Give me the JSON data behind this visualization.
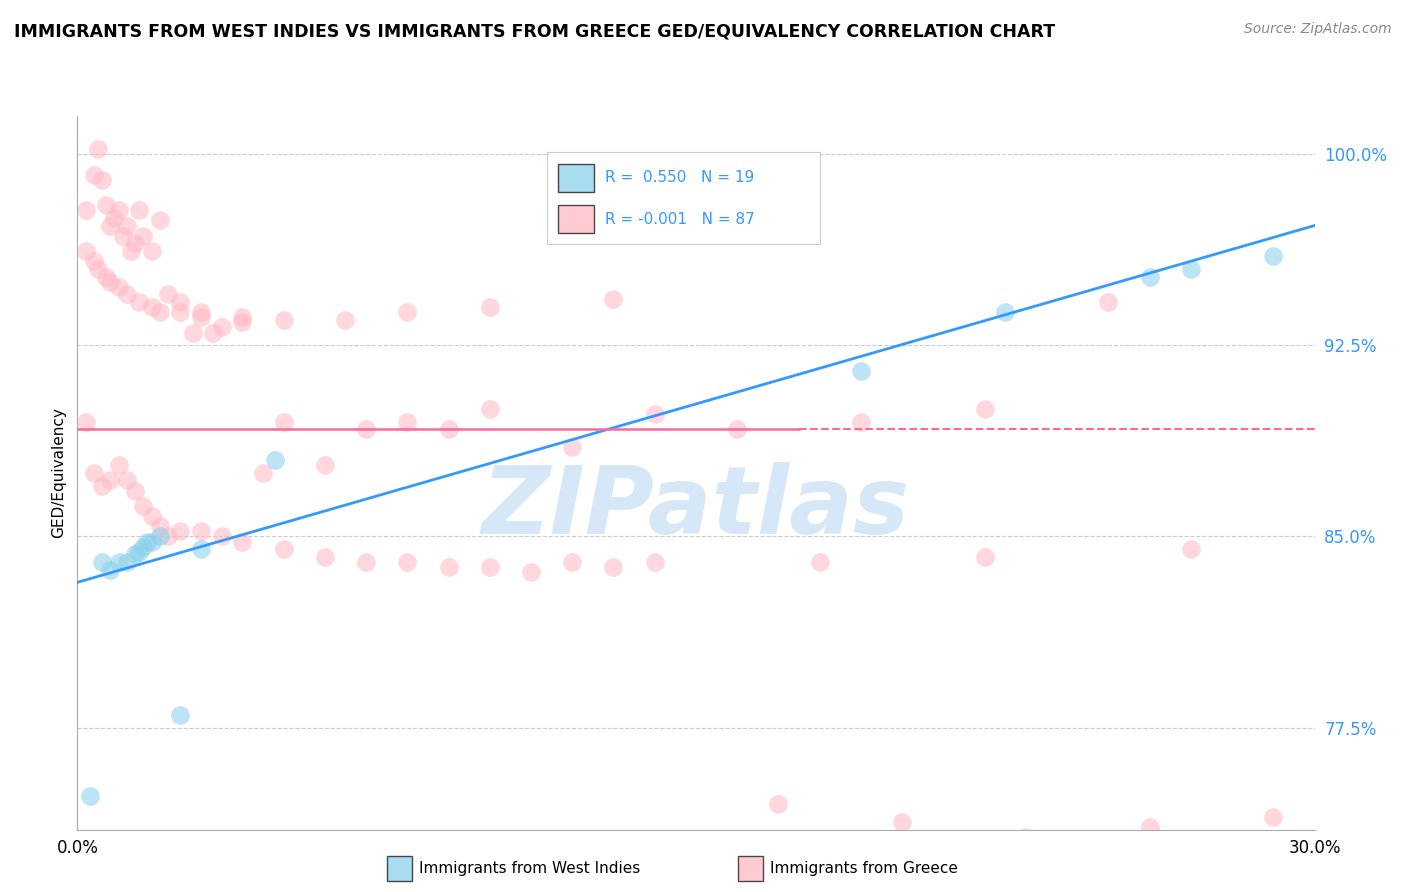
{
  "title": "IMMIGRANTS FROM WEST INDIES VS IMMIGRANTS FROM GREECE GED/EQUIVALENCY CORRELATION CHART",
  "source": "Source: ZipAtlas.com",
  "ylabel": "GED/Equivalency",
  "legend_label1": "Immigrants from West Indies",
  "legend_label2": "Immigrants from Greece",
  "r1": 0.55,
  "n1": 19,
  "r2": -0.001,
  "n2": 87,
  "xlim": [
    0.0,
    0.3
  ],
  "ylim": [
    0.735,
    1.015
  ],
  "yticks": [
    0.775,
    0.85,
    0.925,
    1.0
  ],
  "ytick_labels": [
    "77.5%",
    "85.0%",
    "92.5%",
    "100.0%"
  ],
  "xticks": [
    0.0,
    0.3
  ],
  "xtick_labels": [
    "0.0%",
    "30.0%"
  ],
  "color_blue": "#87CEEB",
  "color_pink": "#FFB6C1",
  "trend_blue": "#3399FF",
  "trend_pink": "#FF6699",
  "background_color": "#ffffff",
  "watermark": "ZIPatlas",
  "watermark_color": "#d6e8f7",
  "blue_line_y0": 0.832,
  "blue_line_y1": 0.972,
  "pink_line_y": 0.892,
  "blue_scatter_x": [
    0.003,
    0.006,
    0.008,
    0.01,
    0.012,
    0.014,
    0.015,
    0.016,
    0.017,
    0.018,
    0.02,
    0.025,
    0.03,
    0.048,
    0.19,
    0.225,
    0.26,
    0.27,
    0.29
  ],
  "blue_scatter_y": [
    0.748,
    0.84,
    0.837,
    0.84,
    0.84,
    0.843,
    0.844,
    0.846,
    0.848,
    0.848,
    0.85,
    0.78,
    0.845,
    0.88,
    0.915,
    0.938,
    0.952,
    0.955,
    0.96
  ],
  "pink_scatter_x": [
    0.002,
    0.004,
    0.005,
    0.006,
    0.007,
    0.008,
    0.009,
    0.01,
    0.011,
    0.012,
    0.013,
    0.014,
    0.015,
    0.016,
    0.018,
    0.02,
    0.022,
    0.025,
    0.028,
    0.03,
    0.033,
    0.035,
    0.04,
    0.045,
    0.05,
    0.06,
    0.07,
    0.08,
    0.09,
    0.1,
    0.12,
    0.14,
    0.16,
    0.19,
    0.22,
    0.25,
    0.002,
    0.004,
    0.006,
    0.008,
    0.01,
    0.012,
    0.014,
    0.016,
    0.018,
    0.02,
    0.022,
    0.025,
    0.03,
    0.035,
    0.04,
    0.05,
    0.06,
    0.07,
    0.08,
    0.09,
    0.1,
    0.11,
    0.12,
    0.14,
    0.002,
    0.004,
    0.005,
    0.007,
    0.008,
    0.01,
    0.012,
    0.015,
    0.018,
    0.02,
    0.025,
    0.03,
    0.04,
    0.05,
    0.065,
    0.08,
    0.1,
    0.13,
    0.17,
    0.2,
    0.23,
    0.26,
    0.13,
    0.18,
    0.22,
    0.27,
    0.29
  ],
  "pink_scatter_y": [
    0.978,
    0.992,
    1.002,
    0.99,
    0.98,
    0.972,
    0.975,
    0.978,
    0.968,
    0.972,
    0.962,
    0.965,
    0.978,
    0.968,
    0.962,
    0.974,
    0.945,
    0.942,
    0.93,
    0.938,
    0.93,
    0.932,
    0.934,
    0.875,
    0.895,
    0.878,
    0.892,
    0.895,
    0.892,
    0.9,
    0.885,
    0.898,
    0.892,
    0.895,
    0.9,
    0.942,
    0.895,
    0.875,
    0.87,
    0.872,
    0.878,
    0.872,
    0.868,
    0.862,
    0.858,
    0.854,
    0.85,
    0.852,
    0.852,
    0.85,
    0.848,
    0.845,
    0.842,
    0.84,
    0.84,
    0.838,
    0.838,
    0.836,
    0.84,
    0.84,
    0.962,
    0.958,
    0.955,
    0.952,
    0.95,
    0.948,
    0.945,
    0.942,
    0.94,
    0.938,
    0.938,
    0.936,
    0.936,
    0.935,
    0.935,
    0.938,
    0.94,
    0.943,
    0.745,
    0.738,
    0.732,
    0.736,
    0.838,
    0.84,
    0.842,
    0.845,
    0.74
  ]
}
